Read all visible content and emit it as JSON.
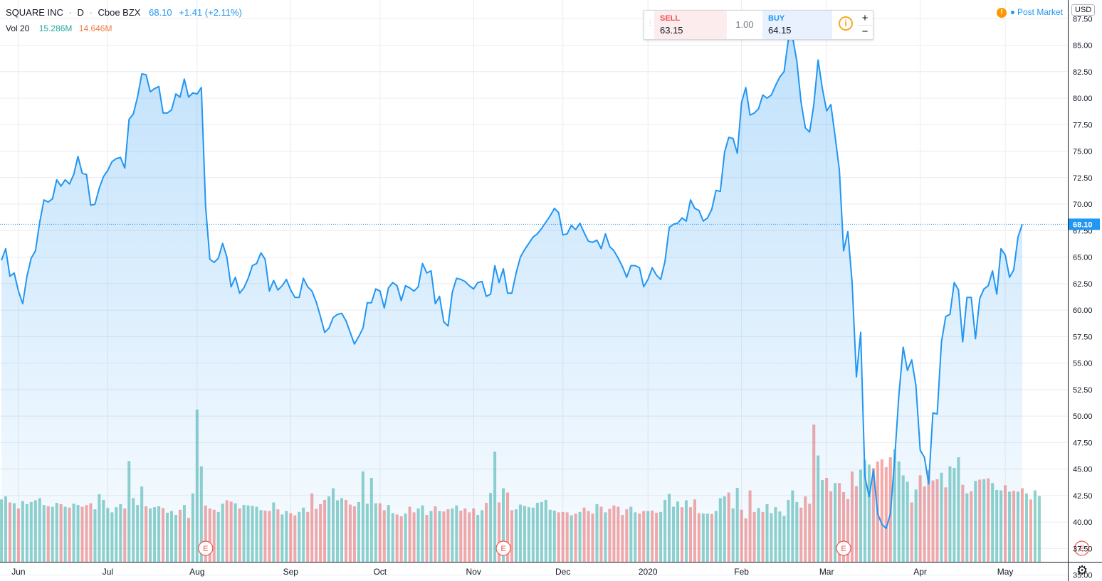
{
  "header": {
    "symbol": "SQUARE INC",
    "interval": "D",
    "exchange": "Cboe BZX",
    "separator": "·",
    "last_price": "68.10",
    "change": "+1.41 (+2.11%)"
  },
  "volume_legend": {
    "label": "Vol 20",
    "volume": "15.286M",
    "volume_ma": "14.646M"
  },
  "trade_panel": {
    "sell_label": "SELL",
    "sell_price": "63.15",
    "quantity": "1.00",
    "buy_label": "BUY",
    "buy_price": "64.15",
    "info_symbol": "i",
    "plus": "+",
    "minus": "−"
  },
  "session": {
    "warning_symbol": "!",
    "label": "Post Market"
  },
  "currency": "USD",
  "colors": {
    "line": "#2196f3",
    "fill": "#2196f3",
    "up_volume": "#26a69a",
    "down_volume": "#ef5350",
    "grid": "#e9ecf1",
    "price_label_bg": "#2196f3"
  },
  "chart_data": {
    "type": "area",
    "title": "SQUARE INC · D · Cboe BZX",
    "ylim": [
      33.3,
      90
    ],
    "y_ticks": [
      "35.00",
      "37.50",
      "40.00",
      "42.50",
      "45.00",
      "47.50",
      "50.00",
      "52.50",
      "55.00",
      "57.50",
      "60.00",
      "62.50",
      "65.00",
      "67.50",
      "70.00",
      "72.50",
      "75.00",
      "77.50",
      "80.00",
      "82.50",
      "85.00",
      "87.50"
    ],
    "x_ticks": [
      "Jun",
      "Jul",
      "Aug",
      "Sep",
      "Oct",
      "Nov",
      "Dec",
      "2020",
      "Feb",
      "Mar",
      "Apr",
      "May"
    ],
    "x_tick_bar_index": [
      4,
      25,
      46,
      68,
      89,
      111,
      132,
      152,
      174,
      194,
      216,
      236
    ],
    "last_value_label": "68.10",
    "earnings_markers": {
      "label": "E",
      "bar_index": [
        48,
        118,
        198,
        254
      ]
    },
    "close": [
      64.7,
      65.8,
      63.2,
      63.5,
      61.8,
      60.6,
      63.2,
      64.9,
      65.6,
      68.3,
      70.4,
      70.2,
      70.5,
      72.3,
      71.7,
      72.3,
      71.9,
      72.8,
      74.5,
      72.9,
      72.8,
      69.9,
      70.0,
      71.5,
      72.6,
      73.2,
      74.0,
      74.3,
      74.4,
      73.4,
      78.0,
      78.5,
      80.1,
      82.3,
      82.2,
      80.6,
      80.9,
      81.1,
      78.6,
      78.6,
      78.9,
      80.4,
      80.1,
      81.8,
      80.1,
      80.5,
      80.4,
      81.0,
      69.8,
      64.8,
      64.5,
      64.9,
      66.3,
      65.0,
      62.2,
      63.1,
      61.6,
      62.1,
      63.0,
      64.2,
      64.4,
      65.4,
      64.8,
      61.8,
      62.8,
      61.9,
      62.3,
      62.9,
      61.9,
      61.2,
      61.2,
      63.0,
      62.2,
      61.8,
      60.8,
      59.4,
      57.9,
      58.3,
      59.3,
      59.6,
      59.7,
      59.0,
      57.9,
      56.8,
      57.5,
      58.3,
      60.7,
      60.7,
      62.0,
      61.8,
      60.2,
      62.1,
      62.6,
      62.3,
      60.9,
      62.3,
      62.1,
      61.8,
      62.2,
      64.4,
      63.5,
      63.7,
      60.6,
      61.3,
      58.9,
      58.5,
      61.7,
      63.0,
      62.9,
      62.7,
      62.3,
      62.0,
      62.6,
      62.7,
      61.3,
      61.5,
      64.2,
      62.6,
      63.9,
      61.6,
      61.6,
      63.5,
      65.0,
      65.7,
      66.3,
      66.9,
      67.2,
      67.7,
      68.3,
      68.9,
      69.6,
      69.2,
      67.1,
      67.2,
      68.0,
      67.6,
      68.2,
      67.3,
      66.5,
      66.4,
      66.6,
      65.8,
      67.2,
      66.0,
      65.6,
      64.9,
      64.1,
      63.1,
      64.2,
      64.2,
      64.0,
      62.2,
      62.9,
      64.0,
      63.3,
      62.9,
      64.6,
      67.8,
      68.1,
      68.2,
      68.7,
      68.4,
      70.4,
      69.6,
      69.4,
      68.4,
      68.7,
      69.5,
      71.3,
      71.2,
      74.9,
      76.3,
      76.2,
      74.8,
      79.6,
      81.0,
      78.4,
      78.6,
      79.0,
      80.3,
      80.0,
      80.3,
      81.2,
      82.0,
      82.5,
      85.5,
      85.8,
      83.5,
      79.6,
      77.2,
      76.8,
      79.4,
      83.6,
      80.9,
      78.8,
      79.4,
      76.4,
      73.2,
      65.6,
      67.4,
      62.6,
      53.7,
      57.9,
      44.3,
      42.4,
      44.9,
      40.8,
      39.8,
      39.4,
      40.8,
      46.0,
      52.0,
      56.5,
      54.3,
      55.3,
      52.9,
      46.8,
      46.1,
      43.6,
      50.3,
      50.2,
      57.0,
      59.4,
      59.6,
      62.6,
      61.9,
      57.0,
      61.2,
      61.2,
      57.3,
      61.1,
      62.0,
      62.3,
      63.7,
      61.5,
      65.8,
      65.2,
      63.1,
      63.8,
      66.9,
      68.1
    ],
    "volume_millions": [
      14.5,
      15.2,
      13.8,
      13.6,
      12.4,
      14.1,
      13.4,
      13.9,
      14.3,
      14.8,
      13.2,
      12.9,
      12.8,
      13.7,
      13.4,
      12.8,
      12.6,
      13.5,
      13.2,
      12.8,
      13.2,
      13.6,
      12.2,
      15.7,
      14.4,
      12.5,
      11.5,
      12.7,
      13.4,
      12.4,
      23.4,
      14.8,
      13.2,
      17.5,
      12.9,
      12.4,
      12.7,
      12.9,
      12.5,
      11.4,
      11.8,
      10.9,
      12.1,
      13.2,
      10.2,
      15.9,
      35.4,
      22.2,
      13.1,
      12.4,
      12.1,
      11.6,
      13.5,
      14.3,
      14.0,
      13.6,
      12.4,
      13.2,
      13.1,
      13.0,
      12.8,
      12.0,
      11.9,
      11.8,
      13.8,
      12.2,
      11.0,
      11.8,
      11.3,
      10.8,
      11.6,
      12.6,
      11.6,
      15.9,
      12.3,
      13.4,
      14.4,
      15.2,
      17.1,
      14.3,
      14.8,
      14.4,
      13.3,
      12.9,
      13.9,
      21.0,
      13.5,
      19.5,
      13.6,
      13.6,
      12.0,
      13.2,
      11.3,
      11.0,
      10.6,
      11.2,
      12.8,
      11.5,
      12.4,
      13.1,
      10.9,
      11.8,
      12.9,
      11.8,
      11.7,
      12.2,
      12.4,
      13.1,
      11.9,
      12.4,
      11.5,
      12.4,
      10.9,
      12.0,
      13.7,
      16.0,
      25.6,
      13.8,
      17.1,
      16.1,
      12.0,
      12.2,
      13.3,
      13.0,
      12.7,
      12.6,
      13.7,
      13.9,
      14.4,
      12.1,
      11.9,
      11.5,
      11.6,
      11.5,
      10.8,
      11.2,
      11.6,
      12.6,
      11.8,
      11.2,
      13.4,
      12.8,
      11.5,
      12.3,
      13.1,
      12.8,
      10.9,
      12.2,
      12.8,
      11.5,
      11.2,
      11.8,
      11.8,
      11.9,
      11.4,
      11.6,
      14.4,
      15.8,
      12.8,
      14.0,
      12.7,
      14.3,
      12.7,
      14.5,
      11.3,
      11.2,
      11.2,
      11.1,
      11.8,
      14.8,
      15.2,
      16.1,
      12.4,
      17.2,
      12.1,
      10.1,
      16.6,
      11.6,
      12.5,
      11.6,
      13.4,
      11.3,
      12.7,
      11.7,
      10.7,
      14.4,
      16.6,
      13.9,
      12.6,
      15.2,
      13.5,
      31.9,
      24.7,
      19.0,
      19.5,
      16.4,
      18.3,
      18.3,
      16.2,
      14.6,
      21.0,
      17.6,
      21.4,
      23.7,
      22.6,
      21.8,
      23.3,
      23.8,
      22.0,
      24.3,
      26.2,
      23.3,
      20.1,
      18.6,
      13.8,
      16.8,
      20.1,
      17.5,
      21.3,
      18.9,
      19.2,
      20.7,
      17.3,
      22.2,
      21.8,
      24.3,
      17.9,
      15.9,
      16.4,
      18.8,
      19.1,
      19.2,
      19.4,
      18.3,
      16.7,
      16.6,
      17.8,
      16.3,
      16.5,
      16.3,
      17.1,
      15.9,
      14.5,
      16.6,
      15.3
    ],
    "volume_up": [
      1,
      1,
      0,
      1,
      0,
      1,
      1,
      1,
      1,
      1,
      1,
      0,
      1,
      1,
      0,
      1,
      0,
      1,
      1,
      0,
      0,
      0,
      1,
      1,
      1,
      1,
      1,
      1,
      1,
      0,
      1,
      1,
      1,
      1,
      0,
      1,
      1,
      1,
      0,
      1,
      1,
      1,
      0,
      1,
      0,
      1,
      1,
      1,
      0,
      0,
      0,
      1,
      1,
      0,
      0,
      1,
      0,
      1,
      1,
      1,
      1,
      1,
      0,
      0,
      1,
      0,
      1,
      1,
      0,
      0,
      1,
      1,
      0,
      0,
      0,
      0,
      0,
      1,
      1,
      1,
      1,
      0,
      0,
      0,
      1,
      1,
      1,
      1,
      1,
      0,
      0,
      1,
      1,
      0,
      0,
      1,
      0,
      0,
      1,
      1,
      0,
      1,
      0,
      1,
      0,
      0,
      1,
      1,
      0,
      0,
      0,
      0,
      1,
      1,
      0,
      1,
      1,
      0,
      1,
      0,
      0,
      1,
      1,
      1,
      1,
      1,
      1,
      1,
      1,
      1,
      1,
      0,
      0,
      0,
      1,
      0,
      1,
      0,
      0,
      0,
      1,
      0,
      1,
      0,
      0,
      0,
      0,
      0,
      1,
      1,
      0,
      0,
      1,
      0,
      0,
      1,
      1,
      1,
      1,
      1,
      0,
      1,
      0,
      0,
      0,
      1,
      1,
      0,
      1,
      1,
      1,
      0,
      1,
      1,
      0,
      0,
      0,
      0,
      1,
      0,
      1,
      1,
      1,
      1,
      1,
      1,
      1,
      1,
      0,
      0,
      0,
      0,
      1,
      1,
      0,
      0,
      1,
      0,
      0,
      0,
      0,
      0,
      1,
      1,
      1,
      0,
      0,
      0,
      0,
      0,
      1,
      1,
      1,
      1,
      0,
      1,
      0,
      0,
      0,
      0,
      0,
      1,
      0,
      1,
      1,
      1,
      0,
      1,
      0,
      1,
      0,
      1,
      0,
      1,
      1,
      1,
      0,
      1,
      0,
      1,
      0,
      1,
      0,
      1,
      1
    ]
  }
}
